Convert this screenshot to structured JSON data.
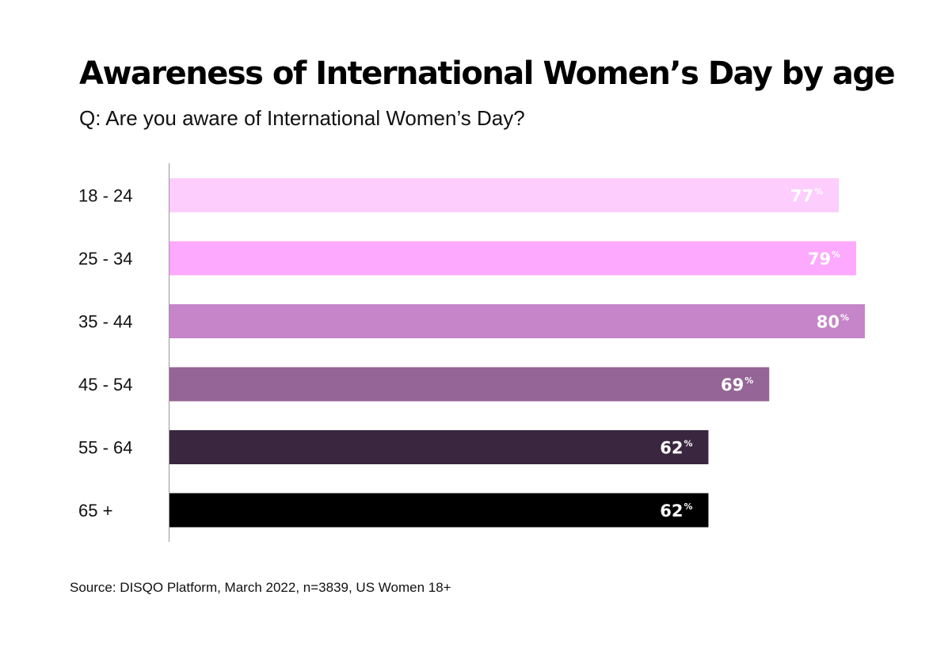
{
  "title": "Awareness of International Women’s Day by age",
  "subtitle": "Q: Are you aware of International Women’s Day?",
  "source": "Source: DISQO Platform, March 2022, n=3839, US Women 18+",
  "chart_data": {
    "type": "bar",
    "orientation": "horizontal",
    "title": "Awareness of International Women’s Day by age",
    "subtitle": "Q: Are you aware of International Women’s Day?",
    "categories": [
      "18 - 24",
      "25 - 34",
      "35 - 44",
      "45 - 54",
      "55 - 64",
      "65 +"
    ],
    "values": [
      77,
      79,
      80,
      69,
      62,
      62
    ],
    "value_suffix": "%",
    "colors": [
      "#fdcdfd",
      "#fda9fd",
      "#c585c8",
      "#946596",
      "#3a263f",
      "#000000"
    ],
    "xlim": [
      0,
      80
    ],
    "grid": false,
    "legend": "none"
  }
}
